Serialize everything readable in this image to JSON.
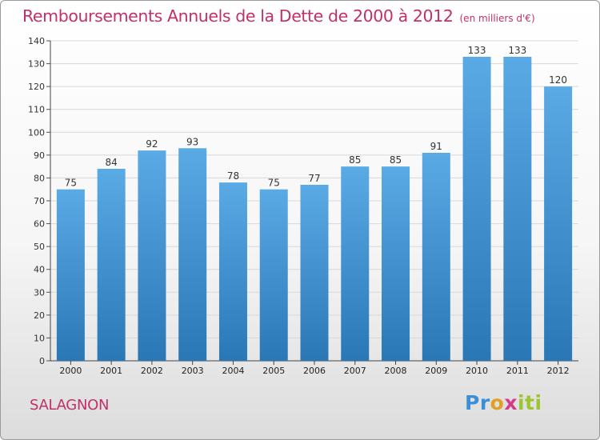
{
  "title": "Remboursements Annuels de la Dette de 2000 à 2012",
  "unit": "(en milliers d'€)",
  "commune": "SALAGNON",
  "logo": {
    "p": "Pr",
    "o": "o",
    "x": "x",
    "iti": "iti"
  },
  "colors": {
    "title": "#c0306a",
    "bar_top": "#5aaae6",
    "bar_bottom": "#2a77b5",
    "grid": "#d8d8d8"
  },
  "chart_data": {
    "type": "bar",
    "title": "Remboursements Annuels de la Dette de 2000 à 2012",
    "xlabel": "",
    "ylabel": "(en milliers d'€)",
    "categories": [
      "2000",
      "2001",
      "2002",
      "2003",
      "2004",
      "2005",
      "2006",
      "2007",
      "2008",
      "2009",
      "2010",
      "2011",
      "2012"
    ],
    "values": [
      75,
      84,
      92,
      93,
      78,
      75,
      77,
      85,
      85,
      91,
      133,
      133,
      120
    ],
    "ylim": [
      0,
      140
    ],
    "yticks": [
      0,
      10,
      20,
      30,
      40,
      50,
      60,
      70,
      80,
      90,
      100,
      110,
      120,
      130,
      140
    ],
    "grid": true
  }
}
